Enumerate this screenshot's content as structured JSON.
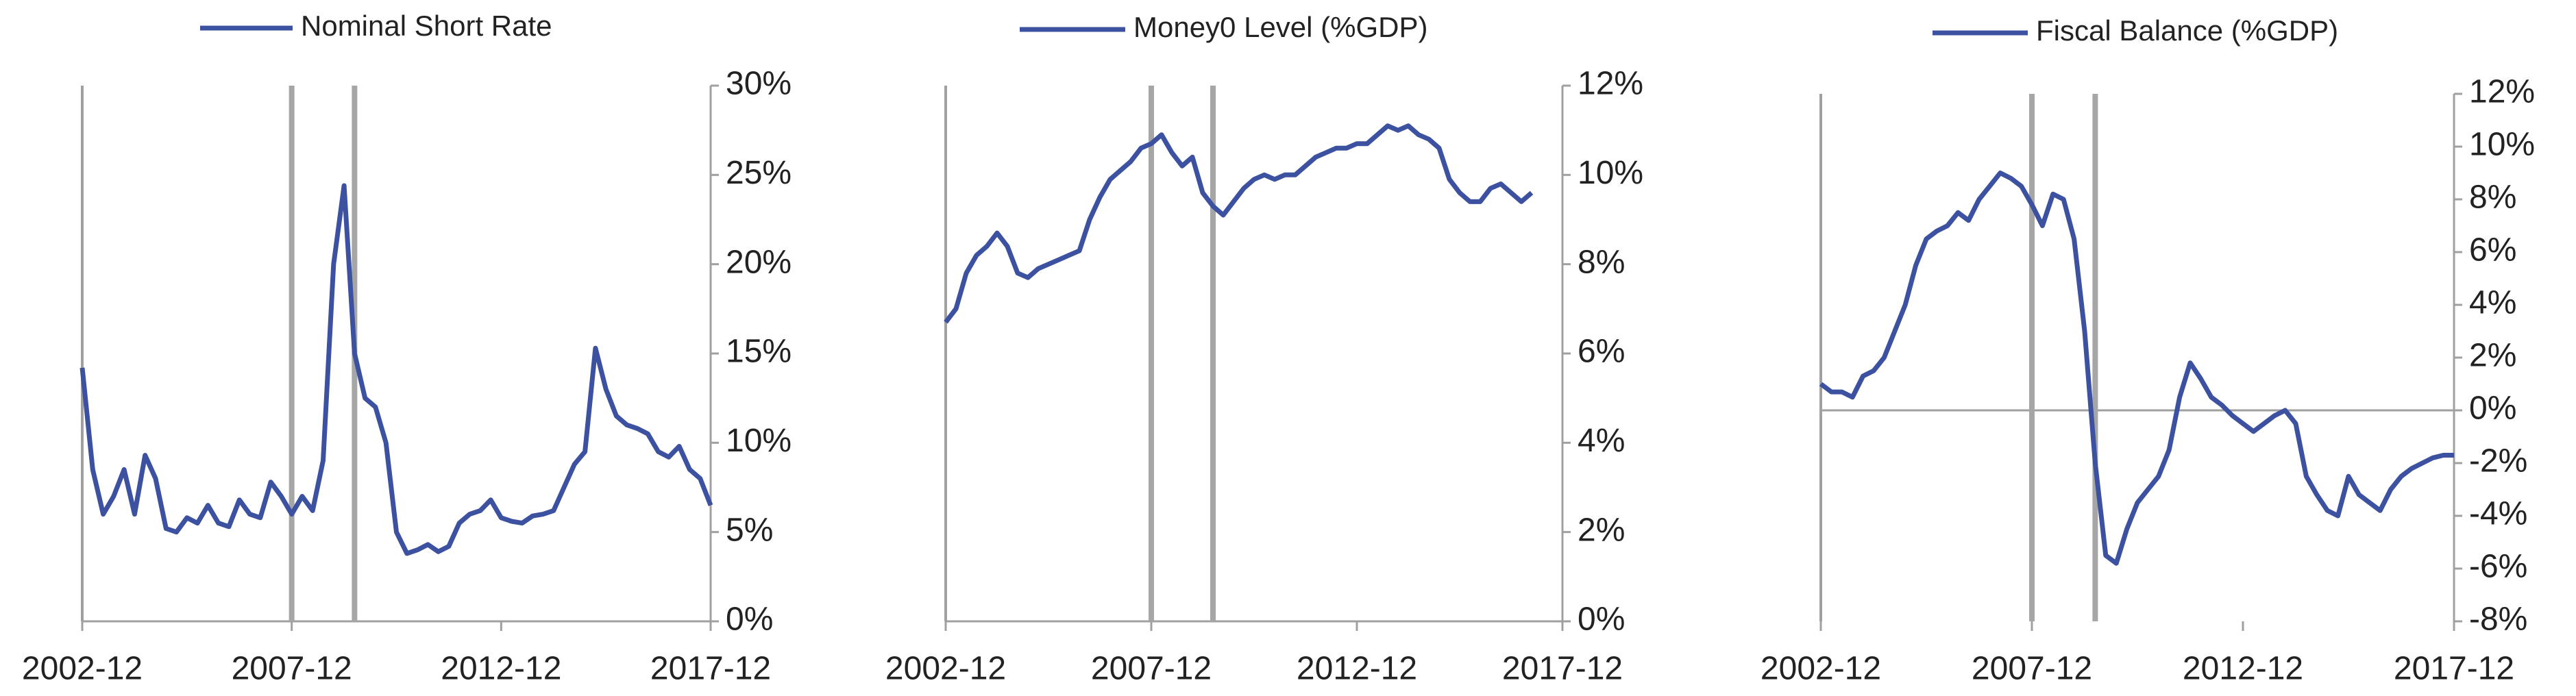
{
  "chart_data": [
    {
      "type": "line",
      "x": [
        "2002-12",
        "2003-03",
        "2003-06",
        "2003-09",
        "2003-12",
        "2004-03",
        "2004-06",
        "2004-09",
        "2004-12",
        "2005-03",
        "2005-06",
        "2005-09",
        "2005-12",
        "2006-03",
        "2006-06",
        "2006-09",
        "2006-12",
        "2007-03",
        "2007-06",
        "2007-09",
        "2007-12",
        "2008-03",
        "2008-06",
        "2008-09",
        "2008-12",
        "2009-03",
        "2009-06",
        "2009-09",
        "2009-12",
        "2010-03",
        "2010-06",
        "2010-09",
        "2010-12",
        "2011-03",
        "2011-06",
        "2011-09",
        "2011-12",
        "2012-03",
        "2012-06",
        "2012-09",
        "2012-12",
        "2013-03",
        "2013-06",
        "2013-09",
        "2013-12",
        "2014-03",
        "2014-06",
        "2014-09",
        "2014-12",
        "2015-03",
        "2015-06",
        "2015-09",
        "2015-12",
        "2016-03",
        "2016-06",
        "2016-09",
        "2016-12",
        "2017-03",
        "2017-06",
        "2017-09",
        "2017-12"
      ],
      "series": [
        {
          "name": "Nominal Short Rate",
          "color": "#3d51a1",
          "values": [
            14.2,
            8.5,
            6.0,
            7.0,
            8.5,
            6,
            9.3,
            8,
            5.2,
            5.0,
            5.8,
            5.5,
            6.5,
            5.5,
            5.3,
            6.8,
            6.0,
            5.8,
            7.8,
            7.0,
            6.0,
            7.0,
            6.2,
            9.0,
            20.0,
            24.4,
            15.0,
            12.5,
            12.0,
            10,
            5.0,
            3.8,
            4.0,
            4.3,
            3.9,
            4.2,
            5.5,
            6.0,
            6.2,
            6.8,
            5.8,
            5.6,
            5.5,
            5.9,
            6.0,
            6.2,
            7.5,
            8.8,
            9.5,
            15.3,
            13,
            11.5,
            11.0,
            10.8,
            10.5,
            9.5,
            9.2,
            9.8,
            8.5,
            8.0,
            6.5
          ]
        }
      ],
      "xlim": [
        "2002-12",
        "2017-12"
      ],
      "xticks": [
        "2002-12",
        "2007-12",
        "2012-12",
        "2017-12"
      ],
      "ylim": [
        0,
        30
      ],
      "yticks": [
        {
          "value": 0,
          "label": "0%"
        },
        {
          "value": 5,
          "label": "5%"
        },
        {
          "value": 10,
          "label": "10%"
        },
        {
          "value": 15,
          "label": "15%"
        },
        {
          "value": 20,
          "label": "20%"
        },
        {
          "value": 25,
          "label": "25%"
        },
        {
          "value": 30,
          "label": "30%"
        }
      ],
      "vlines": [
        "2007-12",
        "2009-06"
      ]
    },
    {
      "type": "line",
      "x": [
        "2002-12",
        "2003-03",
        "2003-06",
        "2003-09",
        "2003-12",
        "2004-03",
        "2004-06",
        "2004-09",
        "2004-12",
        "2005-03",
        "2005-06",
        "2005-09",
        "2005-12",
        "2006-03",
        "2006-06",
        "2006-09",
        "2006-12",
        "2007-03",
        "2007-06",
        "2007-09",
        "2007-12",
        "2008-03",
        "2008-06",
        "2008-09",
        "2008-12",
        "2009-03",
        "2009-06",
        "2009-09",
        "2009-12",
        "2010-03",
        "2010-06",
        "2010-09",
        "2010-12",
        "2011-03",
        "2011-06",
        "2011-09",
        "2011-12",
        "2012-03",
        "2012-06",
        "2012-09",
        "2012-12",
        "2013-03",
        "2013-06",
        "2013-09",
        "2013-12",
        "2014-03",
        "2014-06",
        "2014-09",
        "2014-12",
        "2015-03",
        "2015-06",
        "2015-09",
        "2015-12",
        "2016-03",
        "2016-06",
        "2016-09",
        "2016-12",
        "2017-03"
      ],
      "series": [
        {
          "name": "Money0 Level (%GDP)",
          "color": "#3d51a1",
          "values": [
            6.7,
            7.0,
            7.8,
            8.2,
            8.4,
            8.7,
            8.4,
            7.8,
            7.7,
            7.9,
            8.0,
            8.1,
            8.2,
            8.3,
            9.0,
            9.5,
            9.9,
            10.1,
            10.3,
            10.6,
            10.7,
            10.9,
            10.5,
            10.2,
            10.4,
            9.6,
            9.3,
            9.1,
            9.4,
            9.7,
            9.9,
            10.0,
            9.9,
            10.0,
            10.0,
            10.2,
            10.4,
            10.5,
            10.6,
            10.6,
            10.7,
            10.7,
            10.9,
            11.1,
            11.0,
            11.1,
            10.9,
            10.8,
            10.6,
            9.9,
            9.6,
            9.4,
            9.4,
            9.7,
            9.8,
            9.6,
            9.4,
            9.6
          ]
        }
      ],
      "xlim": [
        "2002-12",
        "2017-12"
      ],
      "xticks": [
        "2002-12",
        "2007-12",
        "2012-12",
        "2017-12"
      ],
      "ylim": [
        0,
        12
      ],
      "yticks": [
        {
          "value": 0,
          "label": "0%"
        },
        {
          "value": 2,
          "label": "2%"
        },
        {
          "value": 4,
          "label": "4%"
        },
        {
          "value": 6,
          "label": "6%"
        },
        {
          "value": 8,
          "label": "8%"
        },
        {
          "value": 10,
          "label": "10%"
        },
        {
          "value": 12,
          "label": "12%"
        }
      ],
      "vlines": [
        "2007-12",
        "2009-06"
      ]
    },
    {
      "type": "line",
      "x": [
        "2002-12",
        "2003-03",
        "2003-06",
        "2003-09",
        "2003-12",
        "2004-03",
        "2004-06",
        "2004-09",
        "2004-12",
        "2005-03",
        "2005-06",
        "2005-09",
        "2005-12",
        "2006-03",
        "2006-06",
        "2006-09",
        "2006-12",
        "2007-03",
        "2007-06",
        "2007-09",
        "2007-12",
        "2008-03",
        "2008-06",
        "2008-09",
        "2008-12",
        "2009-03",
        "2009-06",
        "2009-09",
        "2009-12",
        "2010-03",
        "2010-06",
        "2010-09",
        "2010-12",
        "2011-03",
        "2011-06",
        "2011-09",
        "2011-12",
        "2012-03",
        "2012-06",
        "2012-09",
        "2012-12",
        "2013-03",
        "2013-06",
        "2013-09",
        "2013-12",
        "2014-03",
        "2014-06",
        "2014-09",
        "2014-12",
        "2015-03",
        "2015-06",
        "2015-09",
        "2015-12",
        "2016-03",
        "2016-06",
        "2016-09",
        "2016-12",
        "2017-03",
        "2017-06",
        "2017-09",
        "2017-12"
      ],
      "series": [
        {
          "name": "Fiscal Balance (%GDP)",
          "color": "#3d51a1",
          "values": [
            1.0,
            0.7,
            0.7,
            0.5,
            1.3,
            1.5,
            2.0,
            3.0,
            4.0,
            5.5,
            6.5,
            6.8,
            7.0,
            7.5,
            7.2,
            8.0,
            8.5,
            9.0,
            8.8,
            8.5,
            7.8,
            7.0,
            8.2,
            8.0,
            6.5,
            3.0,
            -2.0,
            -5.5,
            -5.8,
            -4.5,
            -3.5,
            -3.0,
            -2.5,
            -1.5,
            0.5,
            1.8,
            1.2,
            0.5,
            0.2,
            -0.2,
            -0.5,
            -0.8,
            -0.5,
            -0.2,
            0.0,
            -0.5,
            -2.5,
            -3.2,
            -3.8,
            -4.0,
            -2.5,
            -3.2,
            -3.5,
            -3.8,
            -3.0,
            -2.5,
            -2.2,
            -2.0,
            -1.8,
            -1.7,
            -1.7
          ]
        }
      ],
      "xlim": [
        "2002-12",
        "2017-12"
      ],
      "xticks": [
        "2002-12",
        "2007-12",
        "2012-12",
        "2017-12"
      ],
      "ylim": [
        -8,
        12
      ],
      "yticks": [
        {
          "value": -8,
          "label": "-8%"
        },
        {
          "value": -6,
          "label": "-6%"
        },
        {
          "value": -4,
          "label": "-4%"
        },
        {
          "value": -2,
          "label": "-2%"
        },
        {
          "value": 0,
          "label": "0%"
        },
        {
          "value": 2,
          "label": "2%"
        },
        {
          "value": 4,
          "label": "4%"
        },
        {
          "value": 6,
          "label": "6%"
        },
        {
          "value": 8,
          "label": "8%"
        },
        {
          "value": 10,
          "label": "10%"
        },
        {
          "value": 12,
          "label": "12%"
        }
      ],
      "vlines": [
        "2007-12",
        "2009-06"
      ]
    }
  ]
}
